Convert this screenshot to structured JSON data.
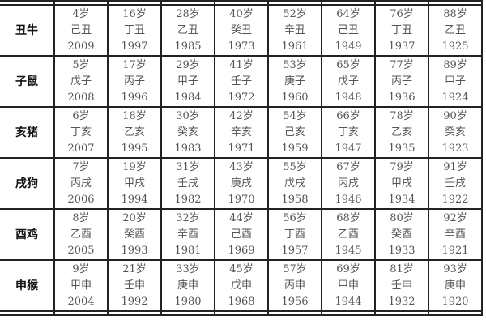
{
  "rows": [
    {
      "label": "丑牛",
      "cells": [
        [
          "4岁",
          "己丑",
          "2009"
        ],
        [
          "16岁",
          "丁丑",
          "1997"
        ],
        [
          "28岁",
          "乙丑",
          "1985"
        ],
        [
          "40岁",
          "癸丑",
          "1973"
        ],
        [
          "52岁",
          "辛丑",
          "1961"
        ],
        [
          "64岁",
          "己丑",
          "1949"
        ],
        [
          "76岁",
          "丁丑",
          "1937"
        ],
        [
          "88岁",
          "乙丑",
          "1925"
        ]
      ]
    },
    {
      "label": "子鼠",
      "cells": [
        [
          "5岁",
          "戊子",
          "2008"
        ],
        [
          "17岁",
          "丙子",
          "1996"
        ],
        [
          "29岁",
          "甲子",
          "1984"
        ],
        [
          "41岁",
          "壬子",
          "1972"
        ],
        [
          "53岁",
          "庚子",
          "1960"
        ],
        [
          "65岁",
          "戊子",
          "1948"
        ],
        [
          "77岁",
          "丙子",
          "1936"
        ],
        [
          "89岁",
          "甲子",
          "1924"
        ]
      ]
    },
    {
      "label": "亥猪",
      "cells": [
        [
          "6岁",
          "丁亥",
          "2007"
        ],
        [
          "18岁",
          "乙亥",
          "1995"
        ],
        [
          "30岁",
          "癸亥",
          "1983"
        ],
        [
          "42岁",
          "辛亥",
          "1971"
        ],
        [
          "54岁",
          "己亥",
          "1959"
        ],
        [
          "66岁",
          "丁亥",
          "1947"
        ],
        [
          "78岁",
          "乙亥",
          "1935"
        ],
        [
          "90岁",
          "癸亥",
          "1923"
        ]
      ]
    },
    {
      "label": "戌狗",
      "cells": [
        [
          "7岁",
          "丙戌",
          "2006"
        ],
        [
          "19岁",
          "甲戌",
          "1994"
        ],
        [
          "31岁",
          "壬戌",
          "1982"
        ],
        [
          "43岁",
          "庚戌",
          "1970"
        ],
        [
          "55岁",
          "戊戌",
          "1958"
        ],
        [
          "67岁",
          "丙戌",
          "1946"
        ],
        [
          "79岁",
          "甲戌",
          "1934"
        ],
        [
          "91岁",
          "壬戌",
          "1922"
        ]
      ]
    },
    {
      "label": "酉鸡",
      "cells": [
        [
          "8岁",
          "乙酉",
          "2005"
        ],
        [
          "20岁",
          "癸酉",
          "1993"
        ],
        [
          "32岁",
          "辛酉",
          "1981"
        ],
        [
          "44岁",
          "己酉",
          "1969"
        ],
        [
          "56岁",
          "丁酉",
          "1957"
        ],
        [
          "68岁",
          "乙酉",
          "1945"
        ],
        [
          "80岁",
          "癸酉",
          "1933"
        ],
        [
          "92岁",
          "辛酉",
          "1921"
        ]
      ]
    },
    {
      "label": "申猴",
      "cells": [
        [
          "9岁",
          "甲申",
          "2004"
        ],
        [
          "21岁",
          "壬申",
          "1992"
        ],
        [
          "33岁",
          "庚申",
          "1980"
        ],
        [
          "45岁",
          "戊申",
          "1968"
        ],
        [
          "57岁",
          "丙申",
          "1956"
        ],
        [
          "69岁",
          "甲申",
          "1944"
        ],
        [
          "81岁",
          "壬申",
          "1932"
        ],
        [
          "93岁",
          "庚申",
          "1920"
        ]
      ]
    }
  ]
}
